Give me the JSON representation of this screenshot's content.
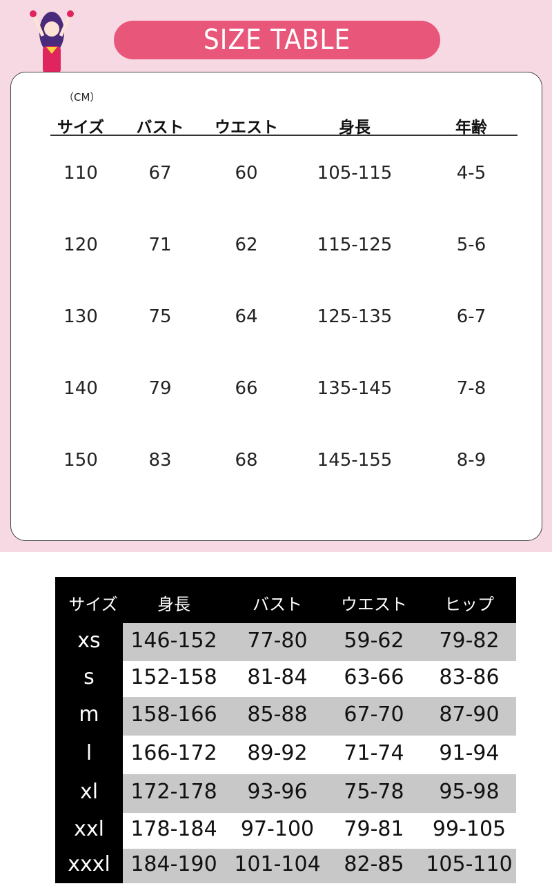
{
  "header": {
    "title": "SIZE  TABLE",
    "bg_color": "#f7d9e3",
    "accent": "#e8567a",
    "illustration": "anime-girl-character"
  },
  "kids_table": {
    "unit": "（CM）",
    "columns": [
      "サイズ",
      "バスト",
      "ウエスト",
      "身長",
      "年齢"
    ],
    "rows": [
      [
        "110",
        "67",
        "60",
        "105-115",
        "4-5"
      ],
      [
        "120",
        "71",
        "62",
        "115-125",
        "5-6"
      ],
      [
        "130",
        "75",
        "64",
        "125-135",
        "6-7"
      ],
      [
        "140",
        "79",
        "66",
        "135-145",
        "7-8"
      ],
      [
        "150",
        "83",
        "68",
        "145-155",
        "8-9"
      ]
    ]
  },
  "adult_table": {
    "columns": [
      "サイズ",
      "身長",
      "バスト",
      "ウエスト",
      "ヒップ"
    ],
    "rows": [
      [
        "xs",
        "146-152",
        "77-80",
        "59-62",
        "79-82"
      ],
      [
        "s",
        "152-158",
        "81-84",
        "63-66",
        "83-86"
      ],
      [
        "m",
        "158-166",
        "85-88",
        "67-70",
        "87-90"
      ],
      [
        "l",
        "166-172",
        "89-92",
        "71-74",
        "91-94"
      ],
      [
        "xl",
        "172-178",
        "93-96",
        "75-78",
        "95-98"
      ],
      [
        "xxl",
        "178-184",
        "97-100",
        "79-81",
        "99-105"
      ],
      [
        "xxxl",
        "184-190",
        "101-104",
        "82-85",
        "105-110"
      ]
    ]
  }
}
